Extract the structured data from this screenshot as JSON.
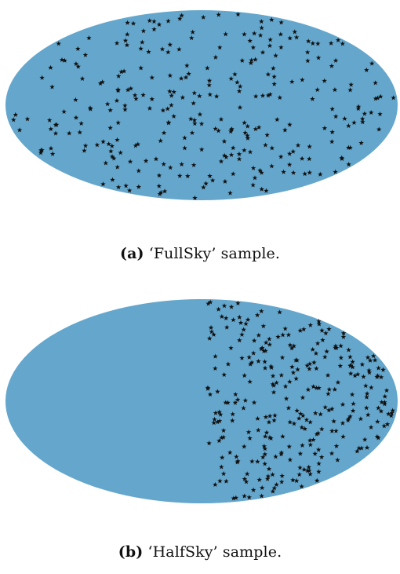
{
  "colors": {
    "sky_fill": "#64a6cc",
    "star_color": "#111111"
  },
  "panels": [
    {
      "id": "a",
      "tag": "(a)",
      "caption_text": "‘FullSky’ sample.",
      "star_count_shown": 300
    },
    {
      "id": "b",
      "tag": "(b)",
      "caption_text": "‘HalfSky’ sample.",
      "star_count_shown": 300
    }
  ]
}
